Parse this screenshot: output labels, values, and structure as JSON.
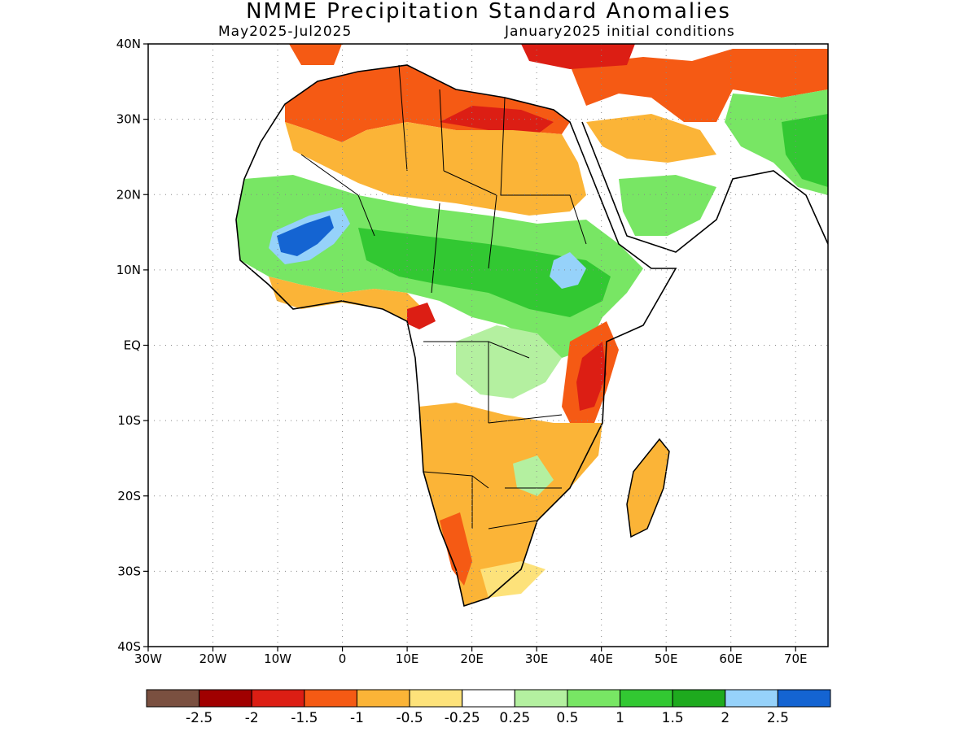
{
  "title": "NMME Precipitation Standard Anomalies",
  "subtitle_left": "May2025-Jul2025",
  "subtitle_right": "January2025 initial conditions",
  "map": {
    "lon_range": [
      -30,
      75
    ],
    "lat_range": [
      -40,
      40
    ],
    "lat_ticks": [
      {
        "value": 40,
        "label": "40N"
      },
      {
        "value": 30,
        "label": "30N"
      },
      {
        "value": 20,
        "label": "20N"
      },
      {
        "value": 10,
        "label": "10N"
      },
      {
        "value": 0,
        "label": "EQ"
      },
      {
        "value": -10,
        "label": "10S"
      },
      {
        "value": -20,
        "label": "20S"
      },
      {
        "value": -30,
        "label": "30S"
      },
      {
        "value": -40,
        "label": "40S"
      }
    ],
    "lon_ticks": [
      {
        "value": -30,
        "label": "30W"
      },
      {
        "value": -20,
        "label": "20W"
      },
      {
        "value": -10,
        "label": "10W"
      },
      {
        "value": 0,
        "label": "0"
      },
      {
        "value": 10,
        "label": "10E"
      },
      {
        "value": 20,
        "label": "20E"
      },
      {
        "value": 30,
        "label": "30E"
      },
      {
        "value": 40,
        "label": "40E"
      },
      {
        "value": 50,
        "label": "50E"
      },
      {
        "value": 60,
        "label": "60E"
      },
      {
        "value": 70,
        "label": "70E"
      }
    ],
    "grid": "dotted"
  },
  "colorbar": {
    "colors": [
      "#7a5040",
      "#a00000",
      "#dc1e14",
      "#f55a14",
      "#fbb437",
      "#fde27a",
      "#ffffff",
      "#b4f0a0",
      "#78e664",
      "#32c832",
      "#1eaa1e",
      "#96d2fa",
      "#1464d2"
    ],
    "labels": [
      "-2.5",
      "-2",
      "-1.5",
      "-1",
      "-0.5",
      "-0.25",
      "0.25",
      "0.5",
      "1",
      "1.5",
      "2",
      "2.5"
    ]
  },
  "anomaly_regions": [
    {
      "name": "north-africa-dry",
      "level": "-1",
      "color": "#f55a14"
    },
    {
      "name": "sahara-mid",
      "level": "-0.5",
      "color": "#fbb437"
    },
    {
      "name": "sahel-wet",
      "level": "1",
      "color": "#78e664"
    },
    {
      "name": "west-africa-very-wet",
      "level": "2.5",
      "color": "#1464d2"
    },
    {
      "name": "ethiopia-wet",
      "level": "2",
      "color": "#96d2fa"
    },
    {
      "name": "east-africa-dry",
      "level": "-1.5",
      "color": "#dc1e14"
    },
    {
      "name": "southern-africa-dry",
      "level": "-0.5",
      "color": "#fbb437"
    }
  ]
}
